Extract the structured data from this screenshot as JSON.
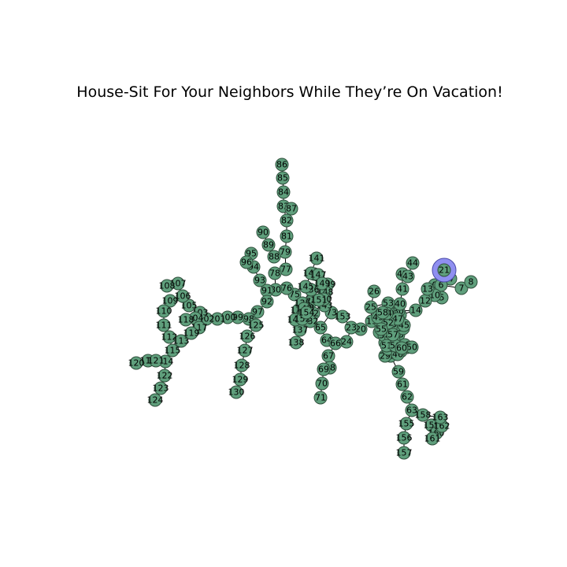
{
  "title": "House-Sit For Your Neighbors While They’re On Vacation!",
  "colors": {
    "node": "#5f9f7c",
    "node_stroke": "#2f4f3c",
    "highlight": "#8f8ff0",
    "edge": "#000000"
  },
  "highlighted_node": "21",
  "nodes": [
    "0",
    "1",
    "2",
    "3",
    "4",
    "5",
    "6",
    "7",
    "8",
    "9",
    "10",
    "11",
    "12",
    "13",
    "14",
    "15",
    "16",
    "17",
    "18",
    "19",
    "20",
    "21",
    "22",
    "23",
    "24",
    "25",
    "26",
    "27",
    "28",
    "29",
    "30",
    "31",
    "32",
    "33",
    "34",
    "35",
    "36",
    "37",
    "38",
    "39",
    "40",
    "41",
    "42",
    "43",
    "44",
    "45",
    "46",
    "47",
    "48",
    "49",
    "50",
    "51",
    "52",
    "53",
    "54",
    "55",
    "56",
    "57",
    "58",
    "59",
    "60",
    "61",
    "62",
    "63",
    "64",
    "65",
    "66",
    "67",
    "68",
    "69",
    "70",
    "71",
    "72",
    "73",
    "74",
    "75",
    "76",
    "77",
    "78",
    "79",
    "80",
    "81",
    "82",
    "83",
    "84",
    "85",
    "86",
    "87",
    "88",
    "89",
    "90",
    "91",
    "92",
    "93",
    "94",
    "95",
    "96",
    "97",
    "98",
    "99",
    "100",
    "101",
    "102",
    "103",
    "104",
    "105",
    "106",
    "107",
    "108",
    "109",
    "110",
    "111",
    "112",
    "113",
    "114",
    "115",
    "116",
    "117",
    "118",
    "119",
    "120",
    "121",
    "122",
    "123",
    "124",
    "125",
    "126",
    "127",
    "128",
    "129",
    "130",
    "131",
    "132",
    "133",
    "134",
    "135",
    "136",
    "137",
    "138",
    "139",
    "140",
    "141",
    "142",
    "143",
    "144",
    "145",
    "146",
    "147",
    "148",
    "149",
    "150",
    "151",
    "152",
    "153",
    "154",
    "155",
    "156",
    "157",
    "158",
    "159",
    "160",
    "161",
    "162",
    "163"
  ]
}
